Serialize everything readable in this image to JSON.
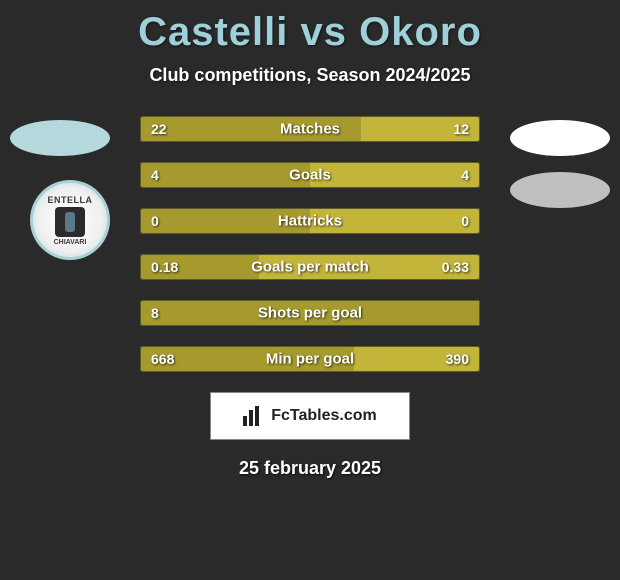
{
  "title": "Castelli vs Okoro",
  "subtitle": "Club competitions, Season 2024/2025",
  "date": "25 february 2025",
  "attribution_text": "FcTables.com",
  "badges": {
    "top_left_color": "#b5d8dd",
    "top_right_color": "#ffffff",
    "bottom_right_color": "#c0c0c0"
  },
  "club_badge": {
    "top_text": "ENTELLA",
    "bottom_text": "CHIAVARI"
  },
  "colors": {
    "bar_left": "#a69a2e",
    "bar_right": "#c2b53a",
    "background": "#2a2a2a",
    "border": "#5a5a2a",
    "title_color": "#9fcfd8"
  },
  "stats": [
    {
      "label": "Matches",
      "left_val": "22",
      "right_val": "12",
      "left_pct": 65,
      "right_pct": 35
    },
    {
      "label": "Goals",
      "left_val": "4",
      "right_val": "4",
      "left_pct": 50,
      "right_pct": 50
    },
    {
      "label": "Hattricks",
      "left_val": "0",
      "right_val": "0",
      "left_pct": 50,
      "right_pct": 50
    },
    {
      "label": "Goals per match",
      "left_val": "0.18",
      "right_val": "0.33",
      "left_pct": 35,
      "right_pct": 65
    },
    {
      "label": "Shots per goal",
      "left_val": "8",
      "right_val": "",
      "left_pct": 100,
      "right_pct": 0
    },
    {
      "label": "Min per goal",
      "left_val": "668",
      "right_val": "390",
      "left_pct": 63,
      "right_pct": 37
    }
  ]
}
